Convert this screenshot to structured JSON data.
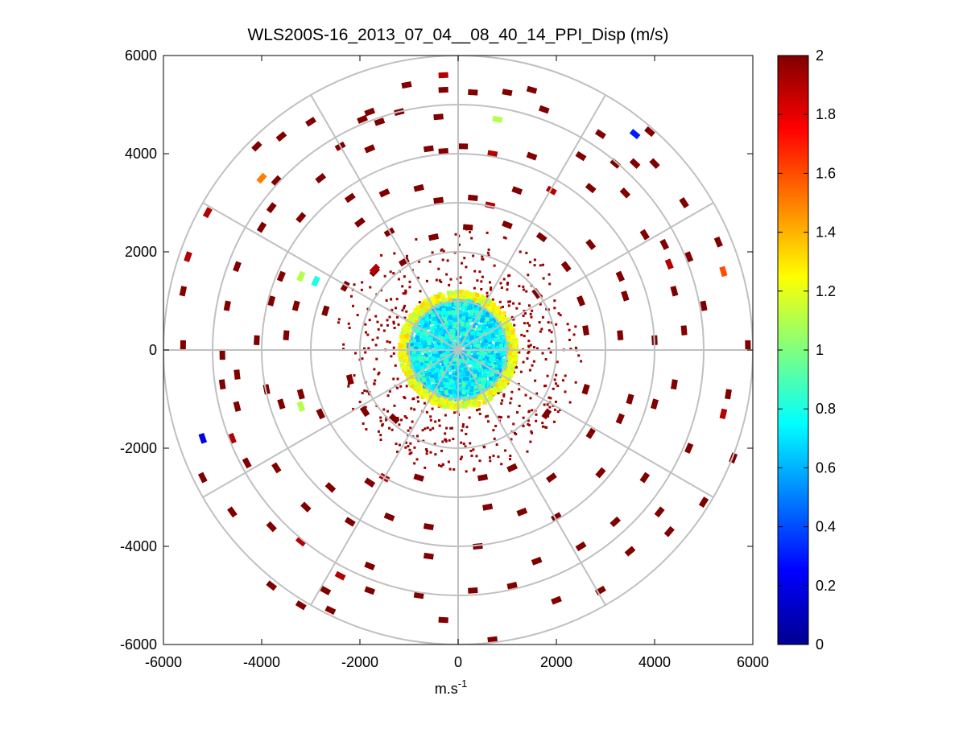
{
  "chart_data": {
    "type": "polar-scatter",
    "title": "WLS200S-16_2013_07_04__08_40_14_PPI_Disp (m/s)",
    "xlabel": "m.s",
    "xlabel_sup": "-1",
    "xlim": [
      -6000,
      6000
    ],
    "ylim": [
      -6000,
      6000
    ],
    "xticks": [
      -6000,
      -4000,
      -2000,
      0,
      2000,
      4000,
      6000
    ],
    "yticks": [
      -6000,
      -4000,
      -2000,
      0,
      2000,
      4000,
      6000
    ],
    "rings": [
      1000,
      2000,
      3000,
      4000,
      5000,
      6000
    ],
    "spokes_deg": [
      0,
      30,
      60,
      90,
      120,
      150,
      180,
      210,
      240,
      270,
      300,
      330
    ],
    "colorbar": {
      "min": 0,
      "max": 2,
      "ticks": [
        0,
        0.2,
        0.4,
        0.6,
        0.8,
        1,
        1.2,
        1.4,
        1.6,
        1.8,
        2
      ],
      "colormap": "jet"
    },
    "core": {
      "radius": 1200,
      "mean_value": 0.75
    },
    "points": [
      [
        -300,
        5600,
        1.9
      ],
      [
        -1050,
        5400,
        2
      ],
      [
        -300,
        5300,
        2
      ],
      [
        300,
        5250,
        2
      ],
      [
        1000,
        5250,
        2
      ],
      [
        1500,
        5300,
        2
      ],
      [
        -1800,
        4850,
        2
      ],
      [
        -1950,
        4700,
        2
      ],
      [
        -1600,
        4650,
        2
      ],
      [
        -1200,
        4850,
        2
      ],
      [
        -400,
        4750,
        2
      ],
      [
        800,
        4700,
        1.1
      ],
      [
        1750,
        4900,
        2
      ],
      [
        2900,
        4400,
        2
      ],
      [
        3600,
        4400,
        0.3
      ],
      [
        3900,
        4450,
        2
      ],
      [
        -3000,
        4650,
        2
      ],
      [
        -3600,
        4350,
        2
      ],
      [
        -2400,
        4150,
        2
      ],
      [
        -1800,
        4100,
        2
      ],
      [
        -600,
        4100,
        2
      ],
      [
        -300,
        4050,
        2
      ],
      [
        100,
        4150,
        2
      ],
      [
        700,
        4000,
        1.9
      ],
      [
        1500,
        3950,
        2
      ],
      [
        2500,
        3950,
        2
      ],
      [
        3200,
        3800,
        2
      ],
      [
        3600,
        3800,
        2
      ],
      [
        4000,
        3800,
        2
      ],
      [
        -4100,
        4150,
        2
      ],
      [
        -4000,
        3500,
        1.5
      ],
      [
        -3700,
        3450,
        2
      ],
      [
        -2800,
        3500,
        2
      ],
      [
        -2200,
        3100,
        2
      ],
      [
        -1500,
        3200,
        2
      ],
      [
        -800,
        3300,
        2
      ],
      [
        -400,
        3050,
        2
      ],
      [
        300,
        3100,
        2
      ],
      [
        650,
        2950,
        1.9
      ],
      [
        1200,
        3250,
        2
      ],
      [
        1900,
        3250,
        1.9
      ],
      [
        2700,
        3300,
        2
      ],
      [
        3400,
        3200,
        2
      ],
      [
        4600,
        3000,
        2
      ],
      [
        -5100,
        2800,
        1.9
      ],
      [
        -4000,
        2500,
        2
      ],
      [
        -3800,
        2900,
        2
      ],
      [
        -3200,
        2700,
        2
      ],
      [
        -2000,
        2600,
        2
      ],
      [
        -1400,
        2400,
        2
      ],
      [
        -500,
        2300,
        2
      ],
      [
        200,
        2500,
        2
      ],
      [
        1000,
        2550,
        2
      ],
      [
        1700,
        2300,
        2
      ],
      [
        2700,
        2150,
        2
      ],
      [
        3800,
        2350,
        2
      ],
      [
        4200,
        2150,
        2
      ],
      [
        5300,
        2200,
        2
      ],
      [
        -5500,
        1900,
        1.9
      ],
      [
        -4500,
        1700,
        2
      ],
      [
        -3600,
        1500,
        2
      ],
      [
        -3200,
        1500,
        1.1
      ],
      [
        -2900,
        1400,
        0.8
      ],
      [
        -2300,
        1300,
        2
      ],
      [
        -1700,
        1600,
        2
      ],
      [
        -1100,
        1800,
        2
      ],
      [
        -1700,
        1650,
        1.9
      ],
      [
        2200,
        1700,
        2
      ],
      [
        3300,
        1500,
        2
      ],
      [
        4300,
        1750,
        1.9
      ],
      [
        4700,
        1900,
        2
      ],
      [
        5400,
        1600,
        1.6
      ],
      [
        -5600,
        1200,
        2
      ],
      [
        -4700,
        900,
        2
      ],
      [
        -3800,
        1000,
        2
      ],
      [
        -3300,
        900,
        2
      ],
      [
        -2700,
        800,
        2
      ],
      [
        1600,
        1150,
        2
      ],
      [
        2500,
        1000,
        2
      ],
      [
        3400,
        1100,
        2
      ],
      [
        4400,
        1200,
        2
      ],
      [
        5000,
        900,
        2
      ],
      [
        -5600,
        100,
        2
      ],
      [
        -4800,
        -100,
        2
      ],
      [
        -4100,
        200,
        2
      ],
      [
        -3500,
        300,
        2
      ],
      [
        2600,
        400,
        2
      ],
      [
        3300,
        300,
        2
      ],
      [
        4000,
        200,
        2
      ],
      [
        4600,
        400,
        2
      ],
      [
        5900,
        100,
        2
      ],
      [
        -4800,
        -700,
        2
      ],
      [
        -4500,
        -500,
        2
      ],
      [
        -3900,
        -800,
        2
      ],
      [
        -3200,
        -900,
        2
      ],
      [
        -2200,
        -600,
        2
      ],
      [
        2600,
        -800,
        2
      ],
      [
        3500,
        -1000,
        2
      ],
      [
        4400,
        -700,
        2
      ],
      [
        5500,
        -900,
        2
      ],
      [
        -5200,
        -1800,
        0.2
      ],
      [
        -4600,
        -1800,
        1.9
      ],
      [
        -4500,
        -1150,
        2
      ],
      [
        -3600,
        -1100,
        2
      ],
      [
        -3200,
        -1150,
        1.1
      ],
      [
        -2800,
        -1300,
        2
      ],
      [
        -1900,
        -1250,
        2
      ],
      [
        -1300,
        -1400,
        2
      ],
      [
        1800,
        -1300,
        2
      ],
      [
        2700,
        -1700,
        2
      ],
      [
        3300,
        -1400,
        2
      ],
      [
        4000,
        -1100,
        2
      ],
      [
        5400,
        -1300,
        1.9
      ],
      [
        -5200,
        -2600,
        2
      ],
      [
        -4300,
        -2300,
        2
      ],
      [
        -3700,
        -2400,
        2
      ],
      [
        -2600,
        -2800,
        2
      ],
      [
        -1800,
        -2700,
        2
      ],
      [
        -1500,
        -2600,
        1.9
      ],
      [
        -800,
        -2600,
        2
      ],
      [
        500,
        -2600,
        2
      ],
      [
        1100,
        -2400,
        2
      ],
      [
        1900,
        -2600,
        2
      ],
      [
        2900,
        -2500,
        2
      ],
      [
        3800,
        -2600,
        2
      ],
      [
        4700,
        -2000,
        2
      ],
      [
        5600,
        -2200,
        2
      ],
      [
        -4600,
        -3300,
        2
      ],
      [
        -3800,
        -3600,
        2
      ],
      [
        -3100,
        -3200,
        2
      ],
      [
        -2200,
        -3500,
        2
      ],
      [
        -1400,
        -3400,
        2
      ],
      [
        -600,
        -3600,
        2
      ],
      [
        600,
        -3200,
        2
      ],
      [
        1300,
        -3300,
        2
      ],
      [
        2000,
        -3400,
        2
      ],
      [
        3200,
        -3500,
        2
      ],
      [
        4100,
        -3300,
        2
      ],
      [
        5000,
        -3100,
        2
      ],
      [
        -3800,
        -4800,
        2
      ],
      [
        -3200,
        -3900,
        1.9
      ],
      [
        -2400,
        -4600,
        1.9
      ],
      [
        -1800,
        -4400,
        2
      ],
      [
        -600,
        -4200,
        2
      ],
      [
        400,
        -4000,
        2
      ],
      [
        1600,
        -4300,
        2
      ],
      [
        2500,
        -4000,
        2
      ],
      [
        3500,
        -4100,
        2
      ],
      [
        4300,
        -3700,
        2
      ],
      [
        -2700,
        -4900,
        2
      ],
      [
        -1800,
        -4900,
        2
      ],
      [
        -800,
        -5000,
        2
      ],
      [
        300,
        -4900,
        2
      ],
      [
        1100,
        -4800,
        2
      ],
      [
        2000,
        -5100,
        2
      ],
      [
        2900,
        -4900,
        2
      ],
      [
        -300,
        -5500,
        2
      ],
      [
        700,
        -5900,
        2
      ],
      [
        -2600,
        -5300,
        2
      ],
      [
        -3200,
        -5200,
        2
      ]
    ]
  }
}
